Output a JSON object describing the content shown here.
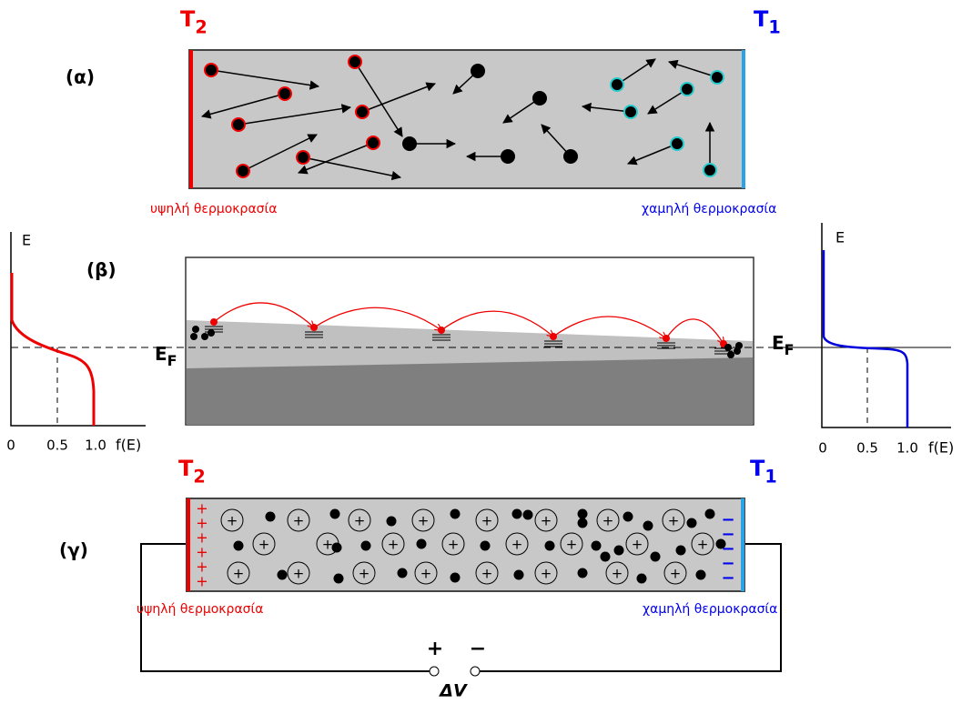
{
  "panel_a": {
    "label": "(α)",
    "hot": {
      "symbol": "T",
      "subscript": "2"
    },
    "cold": {
      "symbol": "T",
      "subscript": "1"
    },
    "hot_text": "υψηλή θερμοκρασία",
    "cold_text": "χαμηλή θερμοκρασία"
  },
  "panel_b": {
    "label": "(β)",
    "fermi": {
      "symbol": "E",
      "subscript": "F"
    },
    "left_graph": {
      "y_label": "E",
      "x_label": "f(E)",
      "ticks": [
        "0",
        "0.5",
        "1.0"
      ]
    },
    "right_graph": {
      "y_label": "E",
      "x_label": "f(E)",
      "ticks": [
        "0",
        "0.5",
        "1.0"
      ]
    }
  },
  "panel_c": {
    "label": "(γ)",
    "hot": {
      "symbol": "T",
      "subscript": "2"
    },
    "cold": {
      "symbol": "T",
      "subscript": "1"
    },
    "hot_text": "υψηλή θερμοκρασία",
    "cold_text": "χαμηλή θερμοκρασία",
    "ion_sign": "+",
    "hot_charge": "+",
    "cold_charge": "−",
    "voltage": {
      "plus": "+",
      "minus": "−",
      "label": "ΔV"
    }
  }
}
